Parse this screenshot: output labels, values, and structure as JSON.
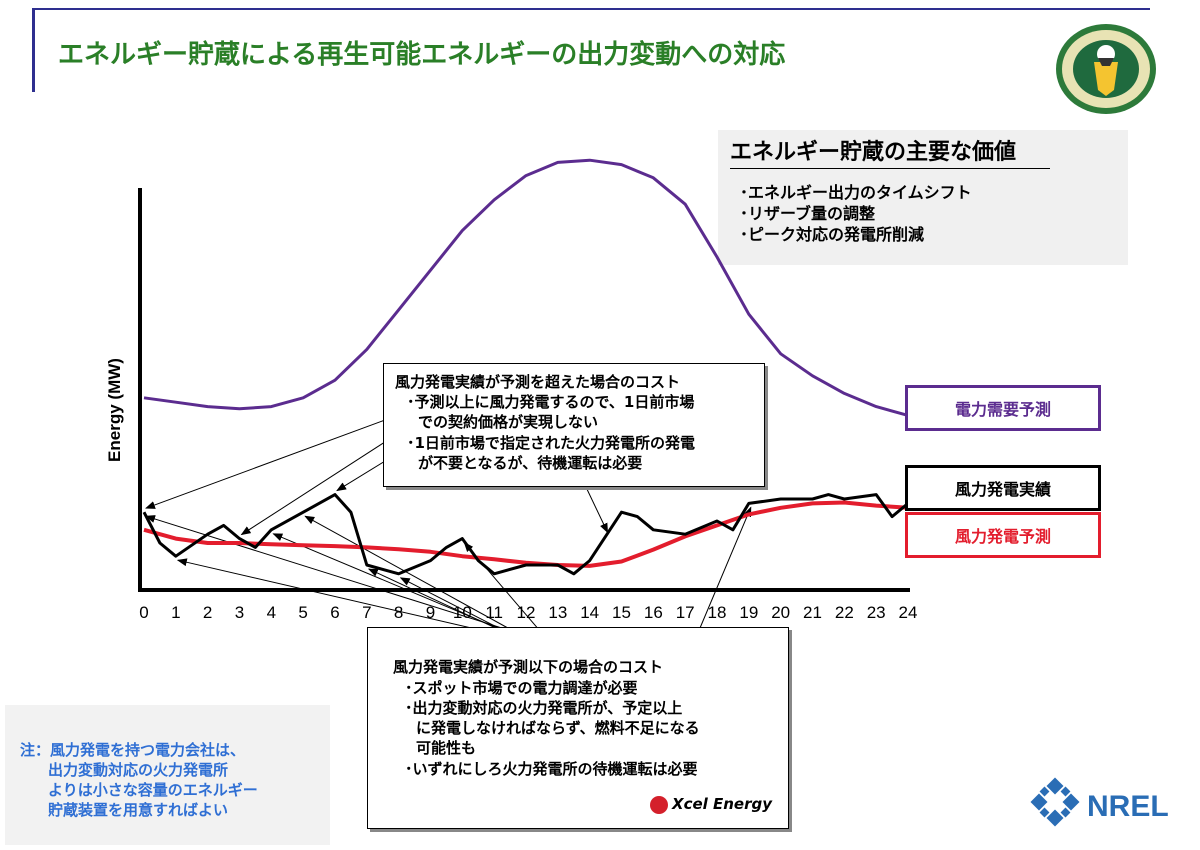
{
  "title": "エネルギー貯蔵による再生可能エネルギーの出力変動への対応",
  "values_box": {
    "heading": "エネルギー貯蔵の主要な価値",
    "items": [
      "･エネルギー出力のタイムシフト",
      "･リザーブ量の調整",
      "･ピーク対応の発電所削減"
    ]
  },
  "over_box": {
    "lines": [
      "風力発電実績が予測を超えた場合のコスト",
      "･予測以上に風力発電するので、1日前市場",
      "での契約価格が実現しない",
      "･1日前市場で指定された火力発電所の発電",
      "が不要となるが、待機運転は必要"
    ]
  },
  "under_box": {
    "lines": [
      "風力発電実績が予測以下の場合のコスト",
      "･スポット市場での電力調達が必要",
      "･出力変動対応の火力発電所が、予定以上",
      "に発電しなければならず、燃料不足になる",
      "可能性も",
      "･いずれにしろ火力発電所の待機運転は必要"
    ]
  },
  "note": {
    "lines": [
      "注：風力発電を持つ電力会社は、",
      "出力変動対応の火力発電所",
      "よりは小さな容量のエネルギー",
      "貯蔵装置を用意すればよい"
    ]
  },
  "logos": {
    "xcel": "Xcel Energy",
    "nrel": "NREL"
  },
  "chart_data": {
    "type": "line",
    "ylabel": "Energy (MW)",
    "xlabel": "",
    "x_ticks": [
      "0",
      "1",
      "2",
      "3",
      "4",
      "5",
      "6",
      "7",
      "8",
      "9",
      "10",
      "11",
      "12",
      "13",
      "14",
      "15",
      "16",
      "17",
      "18",
      "19",
      "20",
      "21",
      "22",
      "23",
      "24"
    ],
    "xlim": [
      0,
      24
    ],
    "ylim": [
      0,
      100
    ],
    "series": [
      {
        "name": "電力需要予測",
        "color": "#5b2c8f",
        "x": [
          0,
          1,
          2,
          3,
          4,
          5,
          6,
          7,
          8,
          9,
          10,
          11,
          12,
          13,
          14,
          15,
          16,
          17,
          18,
          19,
          20,
          21,
          22,
          23,
          24
        ],
        "y": [
          43,
          42,
          41,
          40.5,
          41,
          43,
          47,
          54,
          63,
          72,
          81,
          88,
          93.5,
          96.5,
          97,
          96,
          93,
          87,
          75,
          62,
          53,
          48,
          44,
          41,
          39
        ]
      },
      {
        "name": "風力発電実績",
        "color": "#000000",
        "x": [
          0,
          0.5,
          1,
          2,
          2.5,
          3,
          3.5,
          4,
          5,
          6,
          6.5,
          7,
          8,
          9,
          9.5,
          10,
          10.5,
          11,
          12,
          13,
          13.5,
          14,
          15,
          15.5,
          16,
          17,
          18,
          18.5,
          19,
          20,
          21,
          21.5,
          22,
          23,
          23.5,
          24
        ],
        "y": [
          17,
          10,
          7,
          12,
          14,
          11,
          9,
          13,
          17,
          21,
          17,
          5,
          3,
          6,
          9,
          11,
          6,
          3,
          5,
          5,
          3,
          6,
          17,
          16,
          13,
          12,
          15,
          13,
          19,
          20,
          20,
          21,
          20,
          21,
          16,
          19
        ]
      },
      {
        "name": "風力発電予測",
        "color": "#e31d2d",
        "x": [
          0,
          1,
          2,
          3,
          4,
          5,
          6,
          7,
          8,
          9,
          10,
          11,
          12,
          13,
          14,
          15,
          16,
          17,
          18,
          19,
          20,
          21,
          22,
          23,
          24
        ],
        "y": [
          13,
          11,
          10,
          10,
          9.7,
          9.5,
          9.3,
          9,
          8.6,
          8,
          7,
          6.3,
          5.5,
          5,
          4.8,
          5.8,
          8.5,
          11.5,
          14,
          16.5,
          18,
          19,
          19.2,
          18.5,
          18
        ]
      }
    ],
    "annotations": {
      "over_box_arrows_x": [
        0,
        3,
        6,
        14.5
      ],
      "under_box_arrows_x": [
        0,
        1,
        4,
        5,
        7,
        8,
        10,
        19
      ]
    }
  }
}
